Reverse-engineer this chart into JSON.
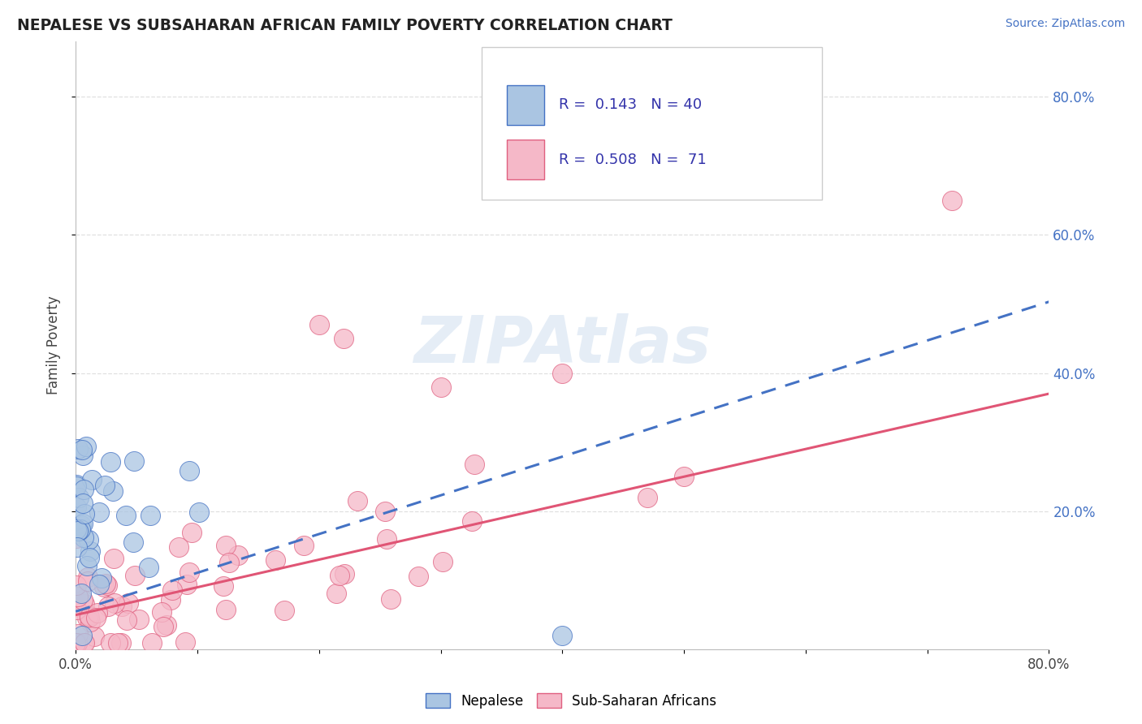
{
  "title": "NEPALESE VS SUBSAHARAN AFRICAN FAMILY POVERTY CORRELATION CHART",
  "source": "Source: ZipAtlas.com",
  "ylabel": "Family Poverty",
  "xlim": [
    0,
    0.8
  ],
  "ylim": [
    0,
    0.88
  ],
  "xtick_labels": [
    "0.0%",
    "",
    "",
    "",
    "",
    "",
    "",
    "",
    "80.0%"
  ],
  "xtick_vals": [
    0.0,
    0.1,
    0.2,
    0.3,
    0.4,
    0.5,
    0.6,
    0.7,
    0.8
  ],
  "ytick_right_labels": [
    "20.0%",
    "40.0%",
    "60.0%",
    "80.0%"
  ],
  "ytick_vals": [
    0.2,
    0.4,
    0.6,
    0.8
  ],
  "legend1_R": "0.143",
  "legend1_N": "40",
  "legend2_R": "0.508",
  "legend2_N": "71",
  "nepalese_color": "#aac5e2",
  "nepalese_edge_color": "#4472c4",
  "subsaharan_color": "#f5b8c8",
  "subsaharan_edge_color": "#e06080",
  "nepalese_line_color": "#4472c4",
  "subsaharan_line_color": "#e05575",
  "watermark": "ZIPAtlas",
  "watermark_color": "#d0dff0",
  "background_color": "#ffffff",
  "grid_color": "#e0e0e0",
  "nep_line_intercept": 0.055,
  "nep_line_slope": 0.56,
  "sub_line_intercept": 0.05,
  "sub_line_slope": 0.4
}
